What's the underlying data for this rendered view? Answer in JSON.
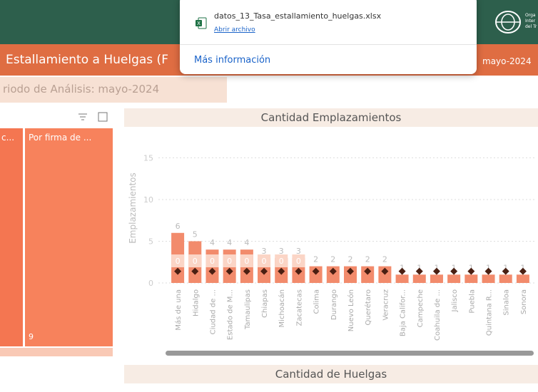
{
  "header": {
    "logo_lines": [
      "Orga",
      "Inter",
      "del Tr"
    ],
    "title": "Estallamiento a Huelgas (F",
    "period_badge": "mayo-2024",
    "subtitle": "riodo de Análisis: mayo-2024"
  },
  "download_popup": {
    "filename": "datos_13_Tasa_estallamiento_huelgas.xlsx",
    "action": "Abrir archivo",
    "more": "Más información"
  },
  "treemap": {
    "tiles": [
      {
        "label": "c..."
      },
      {
        "label": "Por firma de ...",
        "value": 9
      }
    ]
  },
  "chart_data": {
    "type": "bar",
    "title": "Cantidad Emplazamientos",
    "y_label": "Emplazamientos",
    "categories": [
      "Más de una",
      "Hidalgo",
      "Ciudad de ...",
      "Estado de M...",
      "Tamaulipas",
      "Chiapas",
      "Michoacán",
      "Zacatecas",
      "Colima",
      "Durango",
      "Nuevo León",
      "Querétaro",
      "Veracruz",
      "Baja Califor...",
      "Campeche",
      "Coahuila de ...",
      "Jalisco",
      "Puebla",
      "Quintana R...",
      "Sinaloa",
      "Sonora"
    ],
    "series": [
      {
        "color": "#f28b6c",
        "values": [
          6,
          5,
          4,
          4,
          4,
          3,
          3,
          3,
          2,
          2,
          2,
          2,
          2,
          1,
          1,
          1,
          1,
          1,
          1,
          1,
          1
        ]
      },
      {
        "color": "#fbd5c6",
        "values": [
          0,
          0,
          0,
          0,
          0,
          0,
          0,
          0,
          null,
          null,
          null,
          null,
          null,
          null,
          null,
          null,
          null,
          null,
          null,
          null,
          null
        ]
      },
      {
        "color": "#4a1f12",
        "values": [
          1.4,
          1.4,
          1.4,
          1.4,
          1.4,
          1.4,
          1.4,
          1.4,
          1.4,
          1.4,
          1.4,
          1.4,
          1.4,
          1.4,
          1.4,
          1.4,
          1.4,
          1.4,
          1.4,
          1.4,
          1.4
        ]
      }
    ],
    "ylim": [
      0,
      17
    ],
    "yticks": [
      0,
      5,
      10,
      15
    ],
    "grid": true
  },
  "second_chart": {
    "title": "Cantidad de Huelgas"
  }
}
